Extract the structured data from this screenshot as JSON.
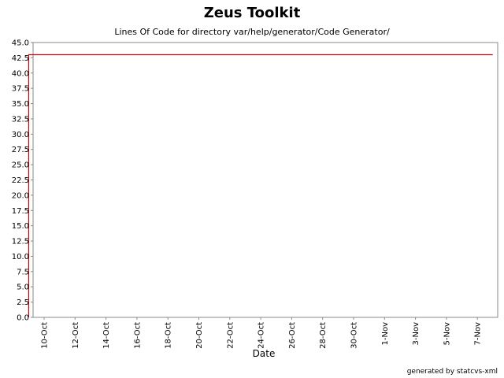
{
  "chart_data": {
    "type": "line",
    "title": "Zeus Toolkit",
    "subtitle": "Lines Of Code for directory var/help/generator/Code Generator/",
    "xlabel": "Date",
    "ylabel": "",
    "ylim": [
      0,
      45
    ],
    "y_ticks": [
      "0.0",
      "2.5",
      "5.0",
      "7.5",
      "10.0",
      "12.5",
      "15.0",
      "17.5",
      "20.0",
      "22.5",
      "25.0",
      "27.5",
      "30.0",
      "32.5",
      "35.0",
      "37.5",
      "40.0",
      "42.5",
      "45.0"
    ],
    "x_ticks": [
      "10-Oct",
      "12-Oct",
      "14-Oct",
      "16-Oct",
      "18-Oct",
      "20-Oct",
      "22-Oct",
      "24-Oct",
      "26-Oct",
      "28-Oct",
      "30-Oct",
      "1-Nov",
      "3-Nov",
      "5-Nov",
      "7-Nov"
    ],
    "grid": true,
    "series": [
      {
        "color": "#cc0000",
        "points": [
          {
            "x": "2003-10-09",
            "y": 0
          },
          {
            "x": "2003-10-09",
            "y": 43
          },
          {
            "x": "2003-11-08",
            "y": 43
          }
        ]
      }
    ]
  },
  "footer": "generated by statcvs-xml"
}
